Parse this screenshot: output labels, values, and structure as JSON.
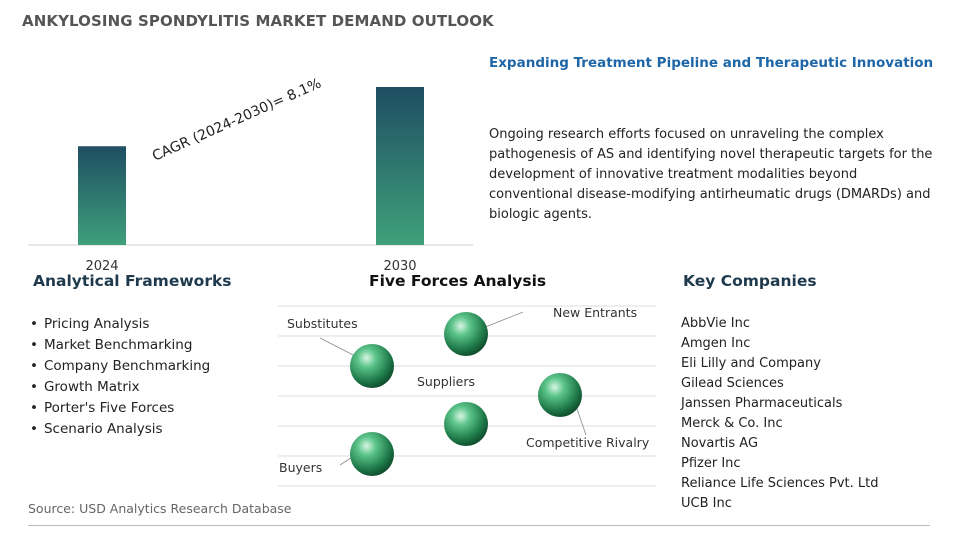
{
  "header": {
    "title": "ANKYLOSING SPONDYLITIS MARKET DEMAND OUTLOOK"
  },
  "chart_data": {
    "type": "bar",
    "categories": [
      "2024",
      "2030"
    ],
    "values": [
      1.0,
      1.6
    ],
    "cagr_label": "CAGR (2024-2030)=  8.1%",
    "title": "",
    "xlabel": "",
    "ylabel": "",
    "grid": false,
    "colors": [
      "#1f4e63",
      "#3fa07a"
    ]
  },
  "highlight": {
    "title": "Expanding Treatment Pipeline and Therapeutic Innovation",
    "body": "Ongoing research efforts focused on unraveling the complex pathogenesis of AS and identifying novel therapeutic targets for the development of innovative treatment modalities beyond conventional disease-modifying antirheumatic drugs (DMARDs) and biologic agents."
  },
  "frameworks": {
    "title": "Analytical Frameworks",
    "items": [
      "Pricing Analysis",
      "Market Benchmarking",
      "Company Benchmarking",
      "Growth Matrix",
      "Porter's Five Forces",
      "Scenario Analysis"
    ]
  },
  "five_forces": {
    "title": "Five Forces Analysis",
    "labels": {
      "substitutes": "Substitutes",
      "new_entrants": "New Entrants",
      "suppliers": "Suppliers",
      "competitive_rivalry": "Competitive Rivalry",
      "buyers": "Buyers"
    }
  },
  "companies": {
    "title": "Key Companies",
    "items": [
      "AbbVie Inc",
      "Amgen Inc",
      "Eli Lilly and Company",
      "Gilead Sciences",
      "Janssen Pharmaceuticals",
      "Merck & Co. Inc",
      "Novartis AG",
      "Pfizer Inc",
      "Reliance Life Sciences Pvt. Ltd",
      "UCB Inc"
    ]
  },
  "footer": {
    "source": "Source: USD Analytics Research Database"
  }
}
